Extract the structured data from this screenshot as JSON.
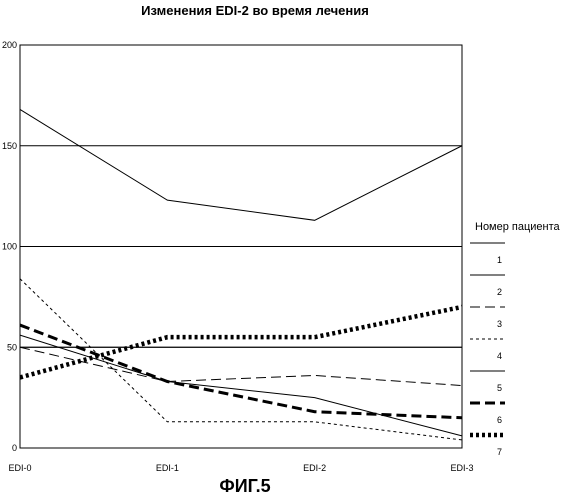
{
  "chart_data": {
    "type": "line",
    "title": "Изменения EDI-2 во время лечения",
    "categories": [
      "EDI-0",
      "EDI-1",
      "EDI-2",
      "EDI-3"
    ],
    "ylim": [
      0,
      200
    ],
    "yticks": [
      "0",
      "50",
      "100",
      "150",
      "200"
    ],
    "grid": true,
    "legend_position": "right",
    "legend_title": "Номер пациента",
    "series": [
      {
        "name": "1",
        "values": [
          168,
          123,
          113,
          150
        ],
        "style": "solid",
        "color": "#000000"
      },
      {
        "name": "2",
        "values": [
          56,
          33,
          25,
          6
        ],
        "style": "solid",
        "color": "#000000"
      },
      {
        "name": "3",
        "values": [
          50,
          33,
          36,
          31
        ],
        "style": "dashed",
        "color": "#000000"
      },
      {
        "name": "4",
        "values": [
          84,
          13,
          13,
          4
        ],
        "style": "dashed-fine",
        "color": "#000000"
      },
      {
        "name": "5",
        "values": [
          50,
          50,
          50,
          50
        ],
        "style": "solid",
        "color": "#000000"
      },
      {
        "name": "6",
        "values": [
          61,
          33,
          18,
          15
        ],
        "style": "dashed-bold",
        "color": "#000000"
      },
      {
        "name": "7",
        "values": [
          35,
          55,
          55,
          70
        ],
        "style": "dotted-bold",
        "color": "#000000"
      }
    ]
  },
  "figure_label": "ФИГ.5"
}
